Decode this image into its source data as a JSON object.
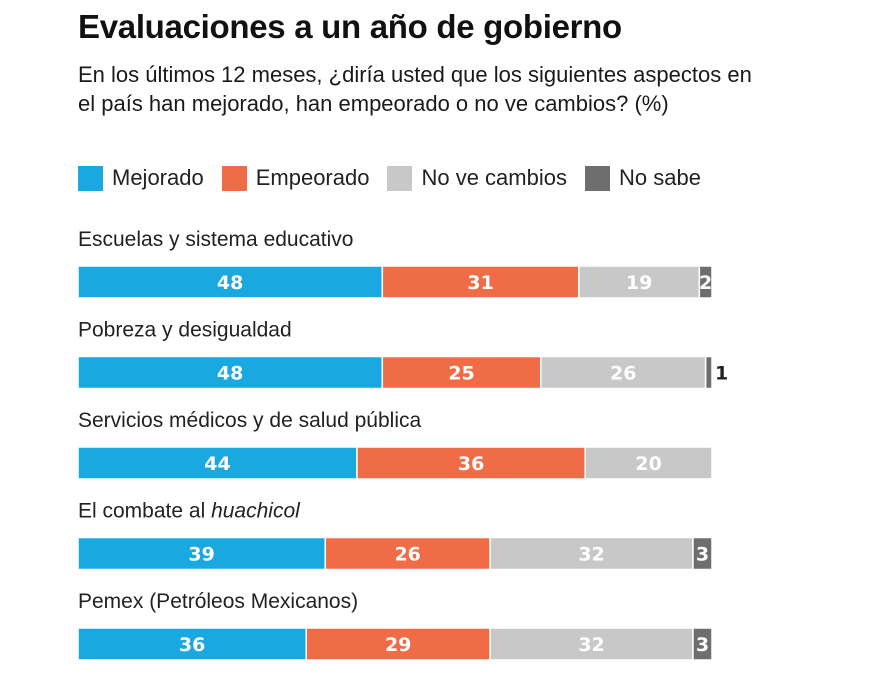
{
  "title": "Evaluaciones a un año de gobierno",
  "subtitle": "En los últimos 12 meses, ¿diría usted que los siguientes aspectos en el país han mejorado, han empeorado o no ve cambios? (%)",
  "colors": {
    "Mejorado": "#1aa8e0",
    "Empeorado": "#ef6c46",
    "No ve cambios": "#c8c8c8",
    "No sabe": "#6e6e6e"
  },
  "chart_data": {
    "type": "bar",
    "orientation": "horizontal",
    "stacked": true,
    "title": "Evaluaciones a un año de gobierno",
    "legend": "top",
    "categories": [
      "Escuelas y sistema educativo",
      "Pobreza y desigualdad",
      "Servicios médicos y de salud pública",
      "El combate al huachicol",
      "Pemex (Petróleos Mexicanos)"
    ],
    "series": [
      {
        "name": "Mejorado",
        "values": [
          48,
          48,
          44,
          39,
          36
        ]
      },
      {
        "name": "Empeorado",
        "values": [
          31,
          25,
          36,
          26,
          29
        ]
      },
      {
        "name": "No ve cambios",
        "values": [
          19,
          26,
          20,
          32,
          32
        ]
      },
      {
        "name": "No sabe",
        "values": [
          2,
          1,
          0,
          3,
          3
        ]
      }
    ],
    "xlim": [
      0,
      100
    ]
  }
}
